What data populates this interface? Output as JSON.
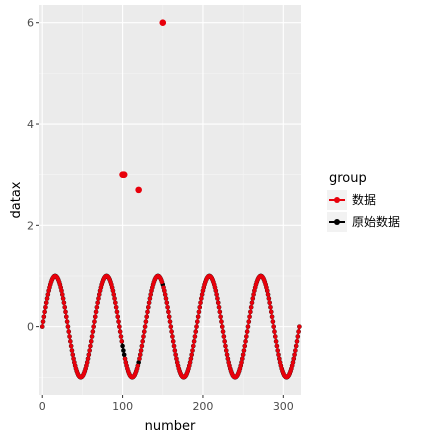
{
  "chart_data": {
    "type": "line",
    "xlabel": "number",
    "ylabel": "datax",
    "xlim": [
      -4,
      322
    ],
    "ylim": [
      -1.35,
      6.35
    ],
    "x_ticks": [
      0,
      100,
      200,
      300
    ],
    "y_ticks": [
      0,
      2,
      4,
      6
    ],
    "x_tick_labels": [
      "0",
      "100",
      "200",
      "300"
    ],
    "y_tick_labels": [
      "0",
      "2",
      "4",
      "6"
    ],
    "grid": true,
    "legend": {
      "title": "group",
      "position": "right",
      "entries": [
        "数据",
        "原始数据"
      ]
    },
    "series": [
      {
        "name": "原始数据",
        "color": "#000000",
        "x_range": [
          0,
          320
        ],
        "function": "sin(2*pi*x/64)"
      },
      {
        "name": "数据",
        "color": "#e8000b",
        "x_range": [
          0,
          320
        ],
        "function": "sin(2*pi*x/64)",
        "outliers": [
          {
            "x": 100,
            "y": 3.0
          },
          {
            "x": 101,
            "y": 3.0
          },
          {
            "x": 102,
            "y": 3.0
          },
          {
            "x": 120,
            "y": 2.7
          },
          {
            "x": 150,
            "y": 6.0
          }
        ]
      }
    ],
    "colors": {
      "panel_bg": "#ebebeb",
      "grid_major": "#ffffff",
      "grid_minor": "#f5f5f5"
    }
  }
}
